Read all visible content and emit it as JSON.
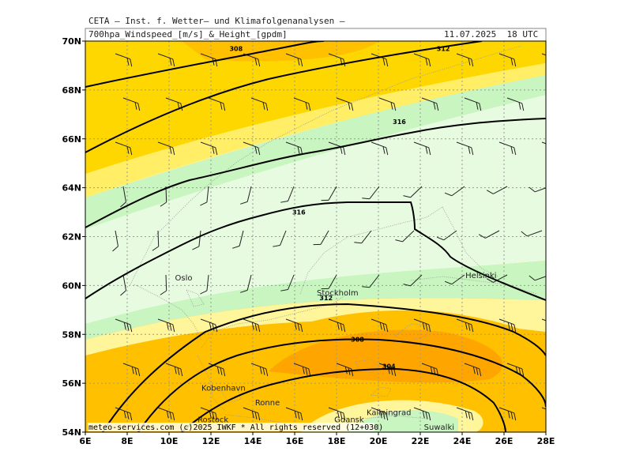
{
  "header": {
    "title": "CETA – Inst. f. Wetter– und Klimafolgenanalysen –",
    "variable": "700hpa_Windspeed_[m/s]_&_Height_[gpdm]",
    "valid_time": "11.07.2025  18 UTC"
  },
  "axes": {
    "x_labels": [
      "6E",
      "8E",
      "10E",
      "12E",
      "14E",
      "16E",
      "18E",
      "20E",
      "22E",
      "24E",
      "26E",
      "28E"
    ],
    "y_labels": [
      "54N",
      "56N",
      "58N",
      "60N",
      "62N",
      "64N",
      "66N",
      "68N",
      "70N"
    ],
    "lon_range": [
      6,
      28
    ],
    "lat_range": [
      54,
      70
    ]
  },
  "cities": [
    {
      "name": "Oslo",
      "lon": 10.7,
      "lat": 60.2
    },
    {
      "name": "Stockholm",
      "lon": 18.05,
      "lat": 59.6
    },
    {
      "name": "Helsinki",
      "lon": 24.9,
      "lat": 60.3
    },
    {
      "name": "Kobenhavn",
      "lon": 12.6,
      "lat": 55.7
    },
    {
      "name": "Ronne",
      "lon": 14.7,
      "lat": 55.1
    },
    {
      "name": "Rostock",
      "lon": 12.1,
      "lat": 54.4
    },
    {
      "name": "Kaliningrad",
      "lon": 20.5,
      "lat": 54.7
    },
    {
      "name": "Gdansk",
      "lon": 18.6,
      "lat": 54.4
    },
    {
      "name": "Suwalki",
      "lon": 22.9,
      "lat": 54.1
    }
  ],
  "contour_labels": [
    {
      "text": "308",
      "lon": 13.2,
      "lat": 69.6
    },
    {
      "text": "312",
      "lon": 23.1,
      "lat": 69.6
    },
    {
      "text": "316",
      "lon": 21.0,
      "lat": 66.6
    },
    {
      "text": "316",
      "lon": 16.2,
      "lat": 62.9
    },
    {
      "text": "312",
      "lon": 17.5,
      "lat": 59.4
    },
    {
      "text": "308",
      "lon": 19.0,
      "lat": 57.7
    },
    {
      "text": "304",
      "lon": 20.5,
      "lat": 56.6
    }
  ],
  "colors": {
    "band_dark_orange": "#ffa500",
    "band_orange": "#ffc000",
    "band_gold": "#ffd700",
    "band_yellow": "#ffee66",
    "band_light_yellow": "#fff59a",
    "band_green": "#c8f5c0",
    "band_light_green": "#e6fbe0"
  },
  "copyright": "meteo-services.com (c)2025 IWKF * All rights reserved (12+030)"
}
